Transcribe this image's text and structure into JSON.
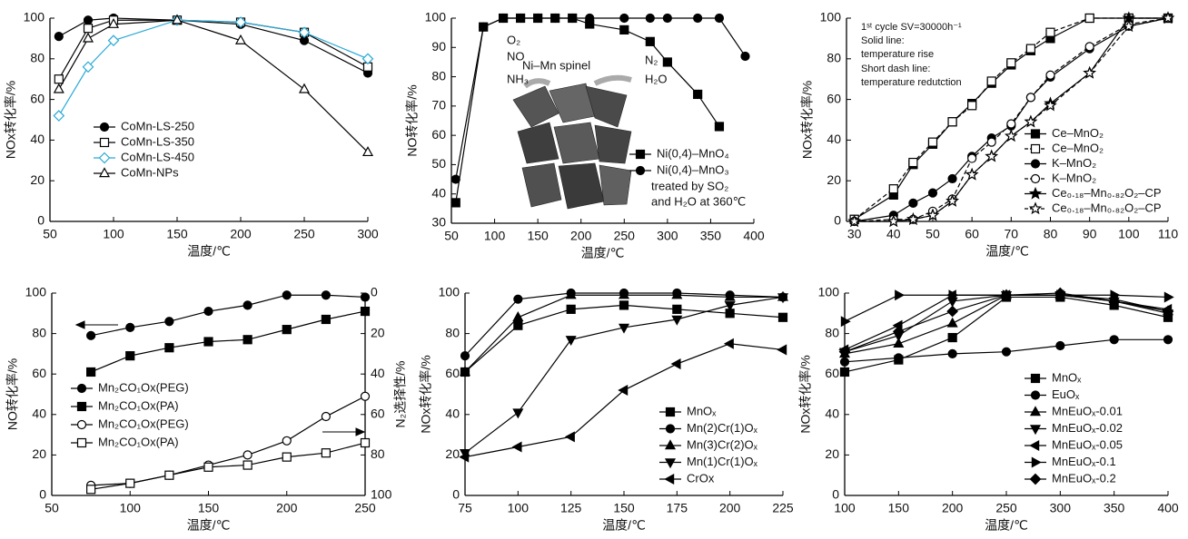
{
  "chart_data": [
    {
      "type": "line",
      "xlabel": "温度/℃",
      "ylabel": "NOx转化率/%",
      "legend": "lower left",
      "x": [
        57,
        80,
        100,
        150,
        200,
        250,
        300
      ],
      "xlim": [
        50,
        300
      ],
      "xticks": [
        50,
        100,
        150,
        200,
        250,
        300
      ],
      "ylim": [
        0,
        100
      ],
      "yticks": [
        0,
        20,
        40,
        60,
        80,
        100
      ],
      "series": [
        {
          "name": "CoMn-LS-250",
          "color": "#000000",
          "marker": "circle",
          "filled": true,
          "values": [
            91,
            99,
            100,
            99,
            97,
            89,
            73
          ]
        },
        {
          "name": "CoMn-LS-350",
          "color": "#000000",
          "marker": "square",
          "filled": false,
          "values": [
            70,
            95,
            99,
            99,
            98,
            93,
            76
          ]
        },
        {
          "name": "CoMn-LS-450",
          "color": "#2aa9d6",
          "marker": "diamond",
          "filled": false,
          "values": [
            52,
            76,
            89,
            99,
            98,
            93,
            80
          ]
        },
        {
          "name": "CoMn-NPs",
          "color": "#000000",
          "marker": "triangle",
          "filled": false,
          "values": [
            65,
            90,
            97,
            99,
            89,
            65,
            34
          ]
        }
      ]
    },
    {
      "type": "line",
      "xlabel": "温度/℃",
      "ylabel": "NO转化率/%",
      "legend": "center right",
      "x": [
        55,
        87,
        110,
        130,
        150,
        170,
        190,
        210,
        250,
        280,
        300,
        335,
        360,
        390
      ],
      "xlim": [
        50,
        400
      ],
      "xticks": [
        50,
        100,
        150,
        200,
        250,
        300,
        350,
        400
      ],
      "ylim": [
        30,
        100
      ],
      "yticks": [
        30,
        40,
        50,
        60,
        70,
        80,
        90,
        100
      ],
      "annotations": [
        "O₂",
        "NO",
        "NH₃",
        "Ni–Mn spinel",
        "N₂",
        "H₂O",
        "treated by SO₂",
        "and H₂O at 360℃"
      ],
      "series": [
        {
          "name": "Ni(0,4)–MnO₄",
          "color": "#000000",
          "marker": "square",
          "filled": true,
          "values": [
            37,
            97,
            100,
            100,
            100,
            100,
            100,
            98,
            96,
            92,
            85,
            74,
            63,
            null
          ]
        },
        {
          "name": "Ni(0,4)–MnO₃",
          "color": "#000000",
          "marker": "circle",
          "filled": true,
          "values": [
            45,
            97,
            100,
            100,
            100,
            100,
            100,
            100,
            100,
            100,
            100,
            100,
            100,
            87
          ]
        }
      ]
    },
    {
      "type": "line",
      "xlabel": "温度/℃",
      "ylabel": "NOx转化率/%",
      "legend": "lower right",
      "x": [
        30,
        40,
        45,
        50,
        55,
        60,
        65,
        70,
        75,
        80,
        90,
        100,
        110
      ],
      "xlim": [
        28,
        110
      ],
      "xticks": [
        30,
        40,
        50,
        60,
        70,
        80,
        90,
        100,
        110
      ],
      "ylim": [
        0,
        100
      ],
      "yticks": [
        0,
        20,
        40,
        60,
        80,
        100
      ],
      "annotations": [
        "1ˢᵗ cycle SV=30000h⁻¹",
        "Solid line:",
        "temperature rise",
        "Short dash line:",
        "temperature redutction"
      ],
      "series": [
        {
          "name": "Ce–MnO₂",
          "color": "#000000",
          "marker": "square",
          "filled": true,
          "dash": false,
          "values": [
            1,
            13,
            28,
            38,
            49,
            58,
            68,
            77,
            84,
            90,
            100,
            100,
            100
          ]
        },
        {
          "name": "Ce–MnO₂",
          "color": "#000000",
          "marker": "square",
          "filled": false,
          "dash": true,
          "values": [
            1,
            16,
            29,
            39,
            49,
            57,
            69,
            78,
            85,
            93,
            100,
            100,
            100
          ]
        },
        {
          "name": "K–MnO₂",
          "color": "#000000",
          "marker": "circle",
          "filled": true,
          "dash": false,
          "values": [
            0,
            3,
            9,
            14,
            21,
            32,
            41,
            47,
            61,
            71,
            85,
            96,
            100
          ]
        },
        {
          "name": "K–MnO₂",
          "color": "#000000",
          "marker": "circle",
          "filled": false,
          "dash": true,
          "values": [
            0,
            1,
            1,
            5,
            11,
            31,
            39,
            48,
            61,
            72,
            86,
            97,
            100
          ]
        },
        {
          "name": "Ce₀.₁₈–Mn₀.₈₂O₂–CP",
          "color": "#000000",
          "marker": "star",
          "filled": true,
          "dash": false,
          "values": [
            0,
            0,
            1,
            3,
            10,
            23,
            32,
            42,
            49,
            58,
            73,
            100,
            100
          ]
        },
        {
          "name": "Ce₀.₁₈–Mn₀.₈₂O₂–CP",
          "color": "#000000",
          "marker": "star",
          "filled": false,
          "dash": true,
          "values": [
            0,
            0,
            1,
            3,
            10,
            23,
            32,
            42,
            49,
            57,
            73,
            96,
            100
          ]
        }
      ]
    },
    {
      "type": "line",
      "xlabel": "温度/℃",
      "ylabel": "NO转化率/%",
      "y2label": "N₂选择性/%",
      "legend": "lower left",
      "x": [
        75,
        100,
        125,
        150,
        175,
        200,
        225,
        250
      ],
      "xlim": [
        50,
        250
      ],
      "xticks": [
        50,
        100,
        150,
        200,
        250
      ],
      "ylim": [
        0,
        100
      ],
      "yticks": [
        0,
        20,
        40,
        60,
        80,
        100
      ],
      "y2lim": [
        100,
        0
      ],
      "y2ticks": [
        0,
        20,
        40,
        60,
        80,
        100
      ],
      "series": [
        {
          "name": "Mn₂CO₁Ox(PEG)",
          "color": "#000000",
          "marker": "circle",
          "filled": true,
          "values": [
            79,
            83,
            86,
            91,
            94,
            99,
            99,
            98
          ]
        },
        {
          "name": "Mn₂CO₁Ox(PA)",
          "color": "#000000",
          "marker": "square",
          "filled": true,
          "values": [
            61,
            69,
            73,
            76,
            77,
            82,
            87,
            91
          ]
        },
        {
          "name": "Mn₂CO₁Ox(PEG)",
          "color": "#000000",
          "marker": "circle",
          "filled": false,
          "axis": "y2",
          "values": [
            95,
            94,
            90,
            85,
            80,
            73,
            61,
            51
          ]
        },
        {
          "name": "Mn₂CO₁Ox(PA)",
          "color": "#000000",
          "marker": "square",
          "filled": false,
          "axis": "y2",
          "values": [
            97,
            94,
            90,
            86,
            85,
            81,
            79,
            74
          ]
        }
      ]
    },
    {
      "type": "line",
      "xlabel": "温度/℃",
      "ylabel": "NOx转化率/%",
      "legend": "lower right",
      "x": [
        75,
        100,
        125,
        150,
        175,
        200,
        225
      ],
      "xlim": [
        75,
        225
      ],
      "xticks": [
        75,
        100,
        125,
        150,
        175,
        200,
        225
      ],
      "ylim": [
        0,
        100
      ],
      "yticks": [
        0,
        20,
        40,
        60,
        80,
        100
      ],
      "series": [
        {
          "name": "MnOₓ",
          "color": "#000000",
          "marker": "square",
          "filled": true,
          "values": [
            61,
            84,
            92,
            94,
            92,
            90,
            88
          ]
        },
        {
          "name": "Mn(2)Cr(1)Oₓ",
          "color": "#000000",
          "marker": "circle",
          "filled": true,
          "values": [
            69,
            97,
            100,
            100,
            100,
            99,
            98
          ]
        },
        {
          "name": "Mn(3)Cr(2)Oₓ",
          "color": "#000000",
          "marker": "triangle",
          "filled": true,
          "values": [
            61,
            88,
            99,
            99,
            99,
            98,
            98
          ]
        },
        {
          "name": "Mn(1)Cr(1)Oₓ",
          "color": "#000000",
          "marker": "triangle-down",
          "filled": true,
          "values": [
            21,
            41,
            77,
            83,
            87,
            94,
            98
          ]
        },
        {
          "name": "CrOx",
          "color": "#000000",
          "marker": "triangle-left",
          "filled": true,
          "values": [
            19,
            24,
            29,
            52,
            65,
            75,
            72
          ]
        }
      ]
    },
    {
      "type": "line",
      "xlabel": "温度/℃",
      "ylabel": "NOx转化率/%",
      "legend": "lower right",
      "x": [
        100,
        150,
        200,
        250,
        300,
        350,
        400
      ],
      "xlim": [
        100,
        400
      ],
      "xticks": [
        100,
        150,
        200,
        250,
        300,
        350,
        400
      ],
      "ylim": [
        0,
        100
      ],
      "yticks": [
        0,
        20,
        40,
        60,
        80,
        100
      ],
      "series": [
        {
          "name": "MnOₓ",
          "color": "#000000",
          "marker": "square",
          "filled": true,
          "values": [
            61,
            67,
            78,
            98,
            98,
            94,
            88
          ]
        },
        {
          "name": "EuOₓ",
          "color": "#000000",
          "marker": "circle",
          "filled": true,
          "values": [
            66,
            68,
            70,
            71,
            74,
            77,
            77
          ]
        },
        {
          "name": "MnEuOₓ-0.01",
          "color": "#000000",
          "marker": "triangle",
          "filled": true,
          "values": [
            70,
            75,
            85,
            99,
            99,
            97,
            91
          ]
        },
        {
          "name": "MnEuOₓ-0.02",
          "color": "#000000",
          "marker": "triangle-down",
          "filled": true,
          "values": [
            71,
            79,
            96,
            99,
            99,
            96,
            90
          ]
        },
        {
          "name": "MnEuOₓ-0.05",
          "color": "#000000",
          "marker": "triangle-left",
          "filled": true,
          "values": [
            72,
            84,
            99,
            99,
            99,
            96,
            92
          ]
        },
        {
          "name": "MnEuOₓ-0.1",
          "color": "#000000",
          "marker": "triangle-right",
          "filled": true,
          "values": [
            86,
            99,
            99,
            99,
            99,
            99,
            98
          ]
        },
        {
          "name": "MnEuOₓ-0.2",
          "color": "#000000",
          "marker": "diamond",
          "filled": true,
          "values": [
            71,
            81,
            91,
            99,
            100,
            96,
            91
          ]
        }
      ]
    }
  ]
}
